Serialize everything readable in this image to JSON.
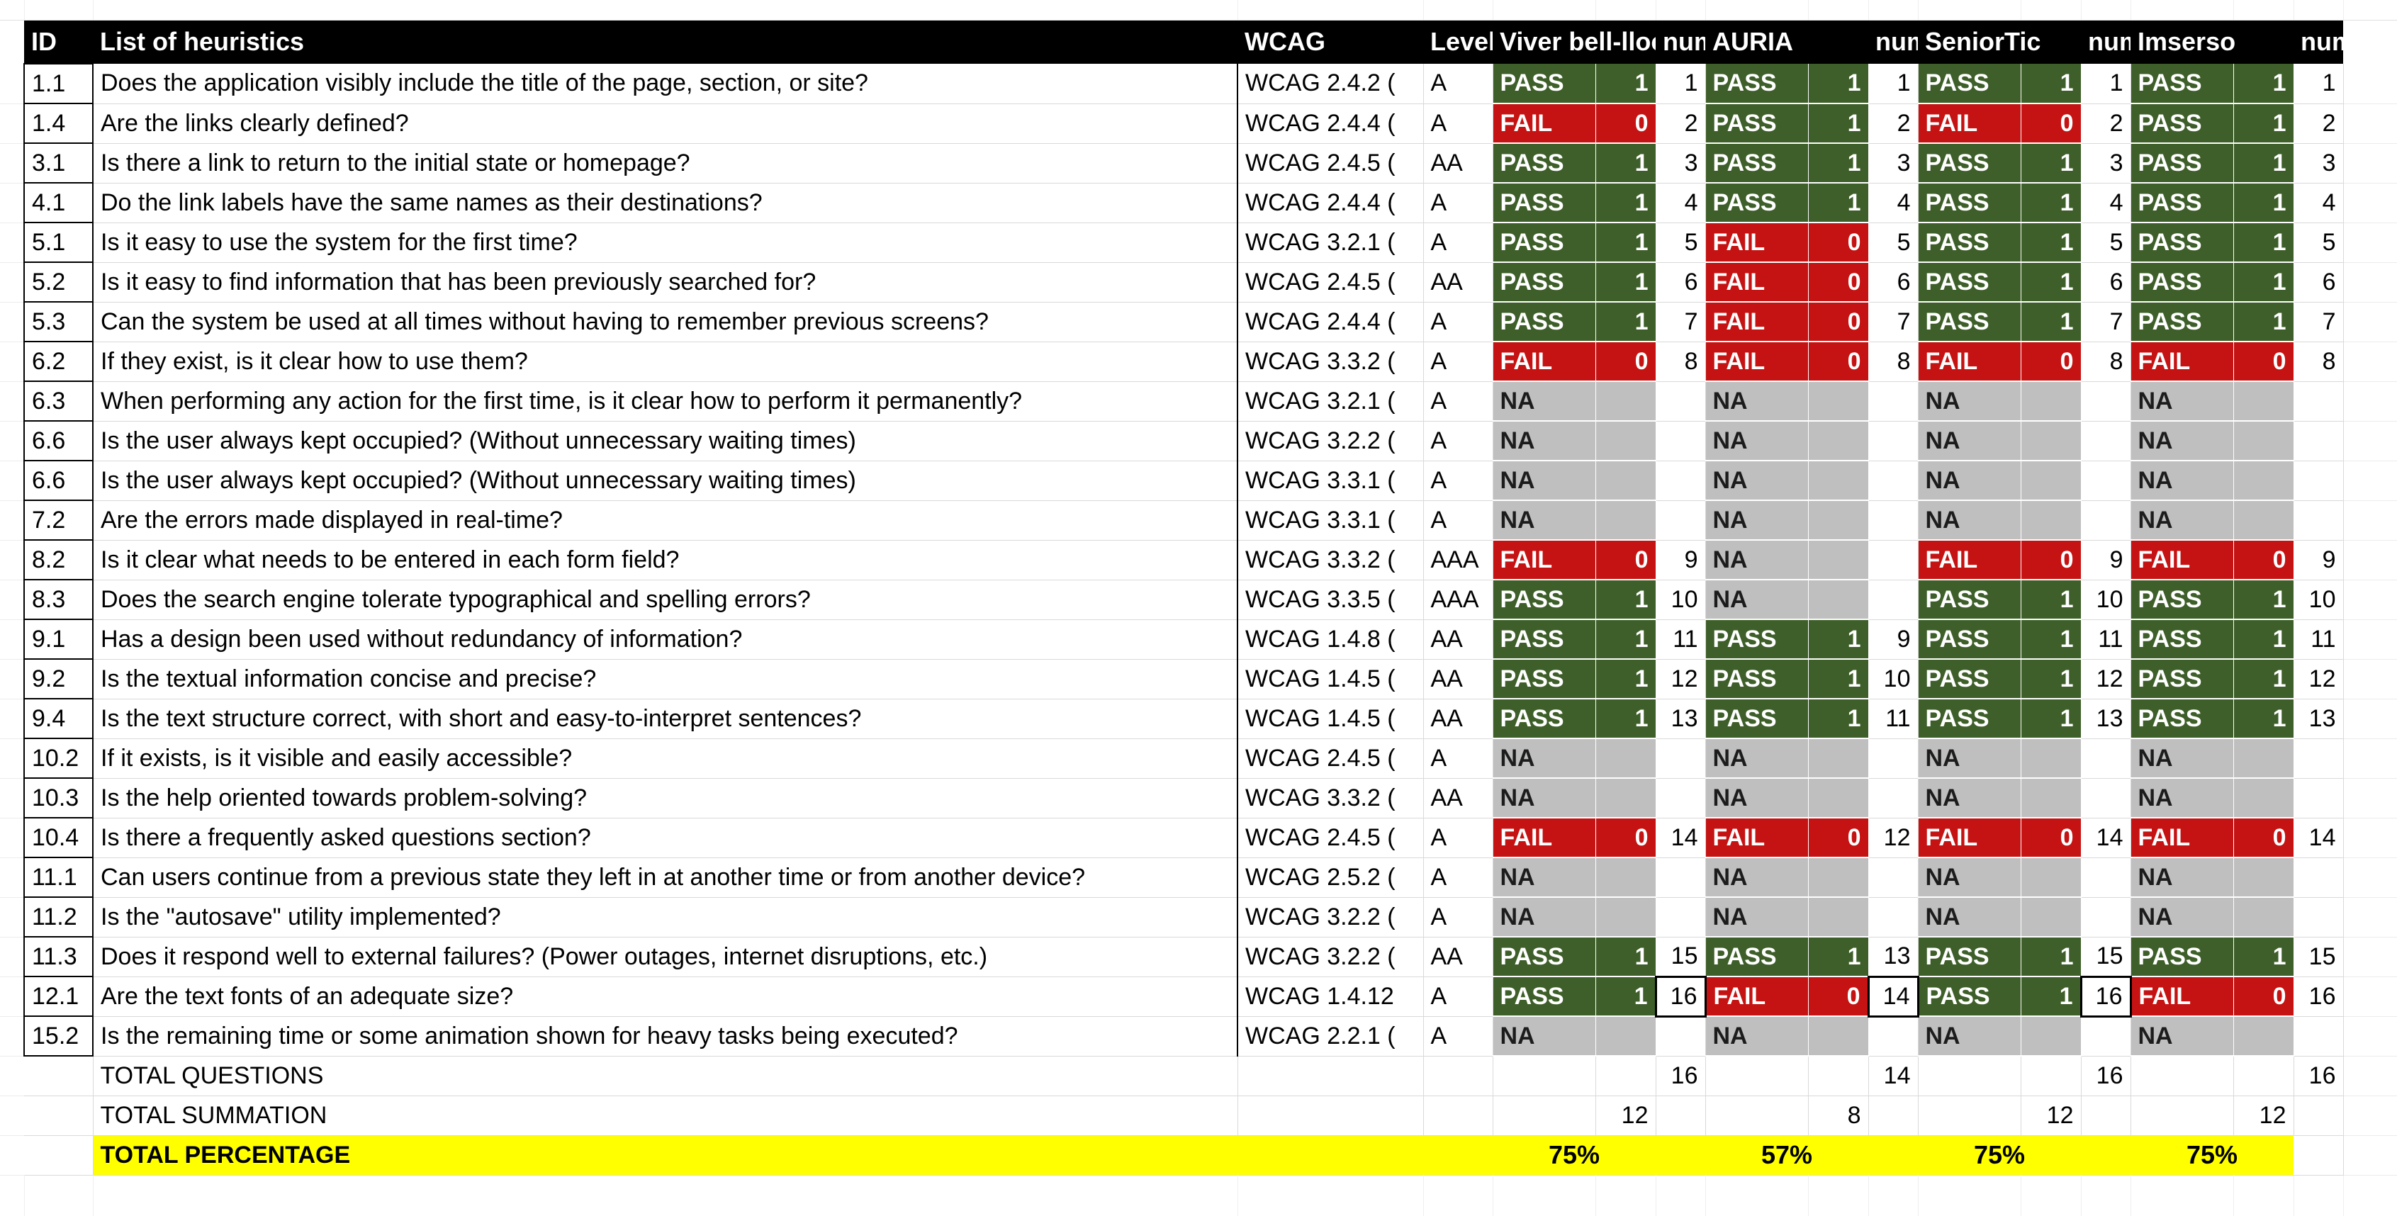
{
  "colors": {
    "pass_green": "#3e5f29",
    "fail_red": "#c51212",
    "na_gray": "#bfbfbf",
    "highlight_yellow": "#ffff00",
    "header_black": "#000000",
    "gridline": "#d9d9d9"
  },
  "table": {
    "header": {
      "id": "ID",
      "list": "List of heuristics",
      "wcag": "WCAG",
      "level": "Level",
      "apps": [
        {
          "name": "Viver bell-lloc",
          "num_label": "num"
        },
        {
          "name": "AURIA",
          "num_label": "num"
        },
        {
          "name": "SeniorTic",
          "num_label": "num"
        },
        {
          "name": "Imserso",
          "num_label": "num"
        }
      ]
    },
    "rows": [
      {
        "id": "1.1",
        "question": "Does the application visibly include the title of the page, section, or site?",
        "wcag": "WCAG 2.4.2 (",
        "level": "A",
        "results": [
          {
            "r": "PASS",
            "v": "1",
            "n": "1"
          },
          {
            "r": "PASS",
            "v": "1",
            "n": "1"
          },
          {
            "r": "PASS",
            "v": "1",
            "n": "1"
          },
          {
            "r": "PASS",
            "v": "1",
            "n": "1"
          }
        ]
      },
      {
        "id": "1.4",
        "question": "Are the links clearly defined?",
        "wcag": "WCAG 2.4.4 (",
        "level": "A",
        "results": [
          {
            "r": "FAIL",
            "v": "0",
            "n": "2"
          },
          {
            "r": "PASS",
            "v": "1",
            "n": "2"
          },
          {
            "r": "FAIL",
            "v": "0",
            "n": "2"
          },
          {
            "r": "PASS",
            "v": "1",
            "n": "2"
          }
        ]
      },
      {
        "id": "3.1",
        "question": "Is there a link to return to the initial state or homepage?",
        "wcag": "WCAG 2.4.5 (",
        "level": "AA",
        "results": [
          {
            "r": "PASS",
            "v": "1",
            "n": "3"
          },
          {
            "r": "PASS",
            "v": "1",
            "n": "3"
          },
          {
            "r": "PASS",
            "v": "1",
            "n": "3"
          },
          {
            "r": "PASS",
            "v": "1",
            "n": "3"
          }
        ]
      },
      {
        "id": "4.1",
        "question": "Do the link labels have the same names as their destinations?",
        "wcag": "WCAG 2.4.4 (",
        "level": "A",
        "results": [
          {
            "r": "PASS",
            "v": "1",
            "n": "4"
          },
          {
            "r": "PASS",
            "v": "1",
            "n": "4"
          },
          {
            "r": "PASS",
            "v": "1",
            "n": "4"
          },
          {
            "r": "PASS",
            "v": "1",
            "n": "4"
          }
        ]
      },
      {
        "id": "5.1",
        "question": "Is it easy to use the system for the first time?",
        "wcag": "WCAG 3.2.1 (",
        "level": "A",
        "results": [
          {
            "r": "PASS",
            "v": "1",
            "n": "5"
          },
          {
            "r": "FAIL",
            "v": "0",
            "n": "5"
          },
          {
            "r": "PASS",
            "v": "1",
            "n": "5"
          },
          {
            "r": "PASS",
            "v": "1",
            "n": "5"
          }
        ]
      },
      {
        "id": "5.2",
        "question": "Is it easy to find information that has been previously searched for?",
        "wcag": "WCAG 2.4.5 (",
        "level": "AA",
        "results": [
          {
            "r": "PASS",
            "v": "1",
            "n": "6"
          },
          {
            "r": "FAIL",
            "v": "0",
            "n": "6"
          },
          {
            "r": "PASS",
            "v": "1",
            "n": "6"
          },
          {
            "r": "PASS",
            "v": "1",
            "n": "6"
          }
        ]
      },
      {
        "id": "5.3",
        "question": "Can the system be used at all times without having to remember previous screens?",
        "wcag": "WCAG 2.4.4 (",
        "level": "A",
        "results": [
          {
            "r": "PASS",
            "v": "1",
            "n": "7"
          },
          {
            "r": "FAIL",
            "v": "0",
            "n": "7"
          },
          {
            "r": "PASS",
            "v": "1",
            "n": "7"
          },
          {
            "r": "PASS",
            "v": "1",
            "n": "7"
          }
        ]
      },
      {
        "id": "6.2",
        "question": "If they exist, is it clear how to use them?",
        "wcag": "WCAG 3.3.2 (",
        "level": "A",
        "results": [
          {
            "r": "FAIL",
            "v": "0",
            "n": "8"
          },
          {
            "r": "FAIL",
            "v": "0",
            "n": "8"
          },
          {
            "r": "FAIL",
            "v": "0",
            "n": "8"
          },
          {
            "r": "FAIL",
            "v": "0",
            "n": "8"
          }
        ]
      },
      {
        "id": "6.3",
        "question": "When performing any action for the first time, is it clear how to perform it permanently?",
        "wcag": "WCAG 3.2.1 (",
        "level": "A",
        "results": [
          {
            "r": "NA",
            "v": "",
            "n": ""
          },
          {
            "r": "NA",
            "v": "",
            "n": ""
          },
          {
            "r": "NA",
            "v": "",
            "n": ""
          },
          {
            "r": "NA",
            "v": "",
            "n": ""
          }
        ]
      },
      {
        "id": "6.6",
        "question": "Is the user always kept occupied? (Without unnecessary waiting times)",
        "wcag": "WCAG 3.2.2 (",
        "level": "A",
        "results": [
          {
            "r": "NA",
            "v": "",
            "n": ""
          },
          {
            "r": "NA",
            "v": "",
            "n": ""
          },
          {
            "r": "NA",
            "v": "",
            "n": ""
          },
          {
            "r": "NA",
            "v": "",
            "n": ""
          }
        ]
      },
      {
        "id": "6.6",
        "question": "Is the user always kept occupied? (Without unnecessary waiting times)",
        "wcag": "WCAG 3.3.1 (",
        "level": "A",
        "results": [
          {
            "r": "NA",
            "v": "",
            "n": ""
          },
          {
            "r": "NA",
            "v": "",
            "n": ""
          },
          {
            "r": "NA",
            "v": "",
            "n": ""
          },
          {
            "r": "NA",
            "v": "",
            "n": ""
          }
        ]
      },
      {
        "id": "7.2",
        "question": "Are the errors made displayed in real-time?",
        "wcag": "WCAG 3.3.1 (",
        "level": "A",
        "results": [
          {
            "r": "NA",
            "v": "",
            "n": ""
          },
          {
            "r": "NA",
            "v": "",
            "n": ""
          },
          {
            "r": "NA",
            "v": "",
            "n": ""
          },
          {
            "r": "NA",
            "v": "",
            "n": ""
          }
        ]
      },
      {
        "id": "8.2",
        "question": "Is it clear what needs to be entered in each form field?",
        "wcag": "WCAG 3.3.2 (",
        "level": "AAA",
        "results": [
          {
            "r": "FAIL",
            "v": "0",
            "n": "9"
          },
          {
            "r": "NA",
            "v": "",
            "n": ""
          },
          {
            "r": "FAIL",
            "v": "0",
            "n": "9"
          },
          {
            "r": "FAIL",
            "v": "0",
            "n": "9"
          }
        ]
      },
      {
        "id": "8.3",
        "question": "Does the search engine tolerate typographical and spelling errors?",
        "wcag": "WCAG 3.3.5 (",
        "level": "AAA",
        "results": [
          {
            "r": "PASS",
            "v": "1",
            "n": "10"
          },
          {
            "r": "NA",
            "v": "",
            "n": ""
          },
          {
            "r": "PASS",
            "v": "1",
            "n": "10"
          },
          {
            "r": "PASS",
            "v": "1",
            "n": "10"
          }
        ]
      },
      {
        "id": "9.1",
        "question": "Has a design been used without redundancy of information?",
        "wcag": "WCAG 1.4.8 (",
        "level": "AA",
        "results": [
          {
            "r": "PASS",
            "v": "1",
            "n": "11"
          },
          {
            "r": "PASS",
            "v": "1",
            "n": "9"
          },
          {
            "r": "PASS",
            "v": "1",
            "n": "11"
          },
          {
            "r": "PASS",
            "v": "1",
            "n": "11"
          }
        ]
      },
      {
        "id": "9.2",
        "question": "Is the textual information concise and precise?",
        "wcag": "WCAG 1.4.5 (",
        "level": "AA",
        "results": [
          {
            "r": "PASS",
            "v": "1",
            "n": "12"
          },
          {
            "r": "PASS",
            "v": "1",
            "n": "10"
          },
          {
            "r": "PASS",
            "v": "1",
            "n": "12"
          },
          {
            "r": "PASS",
            "v": "1",
            "n": "12"
          }
        ]
      },
      {
        "id": "9.4",
        "question": "Is the text structure correct, with short and easy-to-interpret sentences?",
        "wcag": "WCAG 1.4.5 (",
        "level": "AA",
        "results": [
          {
            "r": "PASS",
            "v": "1",
            "n": "13"
          },
          {
            "r": "PASS",
            "v": "1",
            "n": "11"
          },
          {
            "r": "PASS",
            "v": "1",
            "n": "13"
          },
          {
            "r": "PASS",
            "v": "1",
            "n": "13"
          }
        ]
      },
      {
        "id": "10.2",
        "question": "If it exists, is it visible and easily accessible?",
        "wcag": "WCAG 2.4.5 (",
        "level": "A",
        "results": [
          {
            "r": "NA",
            "v": "",
            "n": ""
          },
          {
            "r": "NA",
            "v": "",
            "n": ""
          },
          {
            "r": "NA",
            "v": "",
            "n": ""
          },
          {
            "r": "NA",
            "v": "",
            "n": ""
          }
        ]
      },
      {
        "id": "10.3",
        "question": "Is the help oriented towards problem-solving?",
        "wcag": "WCAG 3.3.2 (",
        "level": "AA",
        "results": [
          {
            "r": "NA",
            "v": "",
            "n": ""
          },
          {
            "r": "NA",
            "v": "",
            "n": ""
          },
          {
            "r": "NA",
            "v": "",
            "n": ""
          },
          {
            "r": "NA",
            "v": "",
            "n": ""
          }
        ]
      },
      {
        "id": "10.4",
        "question": "Is there a frequently asked questions section?",
        "wcag": "WCAG 2.4.5 (",
        "level": "A",
        "results": [
          {
            "r": "FAIL",
            "v": "0",
            "n": "14"
          },
          {
            "r": "FAIL",
            "v": "0",
            "n": "12"
          },
          {
            "r": "FAIL",
            "v": "0",
            "n": "14"
          },
          {
            "r": "FAIL",
            "v": "0",
            "n": "14"
          }
        ]
      },
      {
        "id": "11.1",
        "question": "Can users continue from a previous state they left in at another time or from another device?",
        "wcag": "WCAG 2.5.2 (",
        "level": "A",
        "results": [
          {
            "r": "NA",
            "v": "",
            "n": ""
          },
          {
            "r": "NA",
            "v": "",
            "n": ""
          },
          {
            "r": "NA",
            "v": "",
            "n": ""
          },
          {
            "r": "NA",
            "v": "",
            "n": ""
          }
        ]
      },
      {
        "id": "11.2",
        "question": "Is the \"autosave\" utility implemented?",
        "wcag": "WCAG 3.2.2 (",
        "level": "A",
        "results": [
          {
            "r": "NA",
            "v": "",
            "n": ""
          },
          {
            "r": "NA",
            "v": "",
            "n": ""
          },
          {
            "r": "NA",
            "v": "",
            "n": ""
          },
          {
            "r": "NA",
            "v": "",
            "n": ""
          }
        ]
      },
      {
        "id": "11.3",
        "question": "Does it respond well to external failures? (Power outages, internet disruptions, etc.)",
        "wcag": "WCAG 3.2.2 (",
        "level": "AA",
        "results": [
          {
            "r": "PASS",
            "v": "1",
            "n": "15"
          },
          {
            "r": "PASS",
            "v": "1",
            "n": "13"
          },
          {
            "r": "PASS",
            "v": "1",
            "n": "15"
          },
          {
            "r": "PASS",
            "v": "1",
            "n": "15"
          }
        ]
      },
      {
        "id": "12.1",
        "question": "Are the text fonts of an adequate size?",
        "wcag": "WCAG 1.4.12",
        "level": "A",
        "results": [
          {
            "r": "PASS",
            "v": "1",
            "n": "16",
            "b": true
          },
          {
            "r": "FAIL",
            "v": "0",
            "n": "14",
            "b": true
          },
          {
            "r": "PASS",
            "v": "1",
            "n": "16",
            "b": true
          },
          {
            "r": "FAIL",
            "v": "0",
            "n": "16"
          }
        ]
      },
      {
        "id": "15.2",
        "question": "Is the remaining time or some animation shown for heavy tasks being executed?",
        "wcag": "WCAG 2.2.1 (",
        "level": "A",
        "results": [
          {
            "r": "NA",
            "v": "",
            "n": ""
          },
          {
            "r": "NA",
            "v": "",
            "n": ""
          },
          {
            "r": "NA",
            "v": "",
            "n": ""
          },
          {
            "r": "NA",
            "v": "",
            "n": ""
          }
        ]
      }
    ],
    "totals": {
      "questions": {
        "label": "TOTAL QUESTIONS",
        "values": [
          "16",
          "14",
          "16",
          "16"
        ]
      },
      "summation": {
        "label": "TOTAL SUMMATION",
        "values": [
          "12",
          "8",
          "12",
          "12"
        ]
      },
      "percentage": {
        "label": "TOTAL PERCENTAGE",
        "values": [
          "75%",
          "57%",
          "75%",
          "75%"
        ]
      }
    }
  }
}
